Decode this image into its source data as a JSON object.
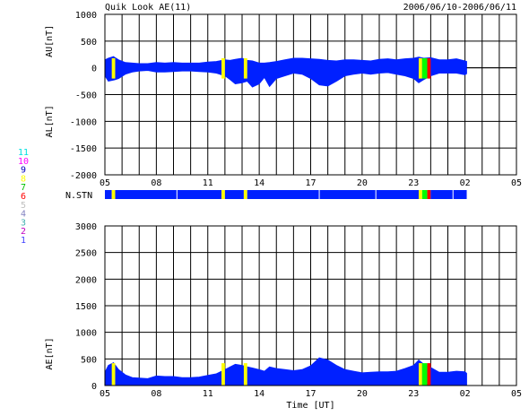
{
  "header": {
    "title": "Quik Look AE(11)",
    "date_range": "2006/06/10-2006/06/11"
  },
  "station_key": {
    "labels": [
      "11",
      "10",
      "9",
      "8",
      "7",
      "6",
      "5",
      "4",
      "3",
      "2",
      "1"
    ],
    "colors": [
      "#00e0e0",
      "#ff00ff",
      "#0000c0",
      "#ffff00",
      "#00c000",
      "#ff0000",
      "#c0c0c0",
      "#8080c0",
      "#40b0b0",
      "#c000c0",
      "#4040ff"
    ]
  },
  "colors": {
    "fill": "#0020ff",
    "grid": "#000000",
    "yellow": "#ffff00",
    "green": "#00ff00",
    "red": "#ff0000"
  },
  "chart_data": [
    {
      "type": "area",
      "name": "au-al-panel",
      "ylabel_top": "AU[nT]",
      "ylabel_bottom": "AL[nT]",
      "xlabel": "",
      "x_ticks": [
        "05",
        "08",
        "11",
        "14",
        "17",
        "20",
        "23",
        "02",
        "05"
      ],
      "xlim_hours": [
        5,
        29
      ],
      "data_end_hour": 26.1,
      "ylim": [
        -2000,
        1000
      ],
      "y_ticks": [
        1000,
        500,
        0,
        -500,
        -1000,
        -1500,
        -2000
      ],
      "grid": true,
      "x_hours": [
        5.0,
        5.2,
        5.5,
        5.8,
        6.2,
        6.6,
        7.0,
        7.5,
        8.0,
        8.5,
        9.0,
        9.5,
        10.0,
        10.5,
        11.0,
        11.5,
        12.0,
        12.3,
        12.6,
        13.0,
        13.3,
        13.6,
        14.0,
        14.3,
        14.6,
        15.0,
        15.5,
        16.0,
        16.5,
        17.0,
        17.5,
        18.0,
        18.5,
        19.0,
        19.5,
        20.0,
        20.5,
        21.0,
        21.5,
        22.0,
        22.5,
        23.0,
        23.3,
        23.6,
        24.0,
        24.5,
        25.0,
        25.5,
        26.0,
        26.1
      ],
      "au": [
        150,
        180,
        210,
        150,
        100,
        90,
        80,
        80,
        100,
        90,
        100,
        90,
        90,
        90,
        110,
        120,
        150,
        140,
        160,
        180,
        140,
        130,
        90,
        90,
        100,
        120,
        150,
        180,
        180,
        170,
        160,
        140,
        130,
        150,
        150,
        140,
        130,
        160,
        170,
        150,
        170,
        180,
        200,
        180,
        190,
        150,
        150,
        170,
        130,
        120
      ],
      "al": [
        -150,
        -250,
        -230,
        -200,
        -120,
        -80,
        -60,
        -50,
        -80,
        -80,
        -70,
        -60,
        -60,
        -70,
        -80,
        -100,
        -150,
        -220,
        -300,
        -280,
        -250,
        -360,
        -300,
        -180,
        -350,
        -200,
        -150,
        -100,
        -120,
        -200,
        -320,
        -340,
        -250,
        -150,
        -120,
        -100,
        -120,
        -100,
        -90,
        -120,
        -150,
        -200,
        -280,
        -220,
        -150,
        -100,
        -100,
        -100,
        -130,
        -110
      ]
    },
    {
      "type": "table",
      "name": "station-count-bar",
      "label": "N.STN",
      "segments": [
        {
          "start": 5.0,
          "end": 5.4,
          "color": "blue"
        },
        {
          "start": 5.4,
          "end": 5.6,
          "color": "yellow"
        },
        {
          "start": 5.6,
          "end": 11.8,
          "color": "blue"
        },
        {
          "start": 11.8,
          "end": 12.0,
          "color": "yellow"
        },
        {
          "start": 12.0,
          "end": 13.1,
          "color": "blue"
        },
        {
          "start": 13.1,
          "end": 13.3,
          "color": "yellow"
        },
        {
          "start": 13.3,
          "end": 23.3,
          "color": "blue"
        },
        {
          "start": 23.3,
          "end": 23.5,
          "color": "yellow"
        },
        {
          "start": 23.5,
          "end": 23.8,
          "color": "green"
        },
        {
          "start": 23.8,
          "end": 24.0,
          "color": "red"
        },
        {
          "start": 24.0,
          "end": 26.1,
          "color": "blue"
        }
      ]
    },
    {
      "type": "area",
      "name": "ae-panel",
      "ylabel": "AE[nT]",
      "xlabel": "Time [UT]",
      "x_ticks": [
        "05",
        "08",
        "11",
        "14",
        "17",
        "20",
        "23",
        "02",
        "05"
      ],
      "xlim_hours": [
        5,
        29
      ],
      "data_end_hour": 26.1,
      "ylim": [
        0,
        3000
      ],
      "y_ticks": [
        3000,
        2500,
        2000,
        1500,
        1000,
        500,
        0
      ],
      "grid": true,
      "x_hours": [
        5.0,
        5.2,
        5.5,
        5.8,
        6.2,
        6.6,
        7.0,
        7.5,
        8.0,
        8.5,
        9.0,
        9.5,
        10.0,
        10.5,
        11.0,
        11.5,
        12.0,
        12.3,
        12.6,
        13.0,
        13.3,
        13.6,
        14.0,
        14.3,
        14.6,
        15.0,
        15.5,
        16.0,
        16.5,
        17.0,
        17.5,
        18.0,
        18.5,
        19.0,
        19.5,
        20.0,
        20.5,
        21.0,
        21.5,
        22.0,
        22.5,
        23.0,
        23.3,
        23.6,
        24.0,
        24.5,
        25.0,
        25.5,
        26.0,
        26.1
      ],
      "values": [
        250,
        380,
        430,
        300,
        200,
        150,
        140,
        130,
        180,
        170,
        170,
        150,
        150,
        160,
        190,
        220,
        300,
        350,
        400,
        380,
        350,
        330,
        300,
        270,
        350,
        320,
        300,
        280,
        300,
        370,
        520,
        480,
        380,
        300,
        270,
        240,
        250,
        260,
        260,
        270,
        320,
        380,
        480,
        400,
        340,
        250,
        250,
        270,
        260,
        230
      ]
    }
  ]
}
